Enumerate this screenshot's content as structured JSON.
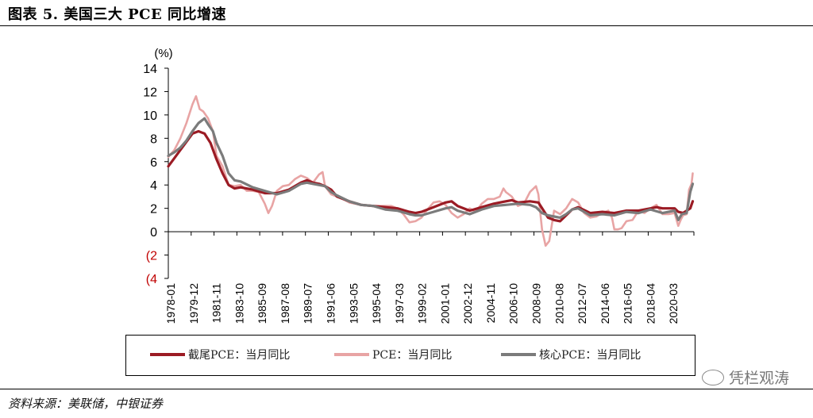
{
  "title": "图表 5. 美国三大 PCE 同比增速",
  "source": "资料来源：美联储，中银证券",
  "watermark": "凭栏观涛",
  "chart_data": {
    "type": "line",
    "unit_label": "(%)",
    "ylim": [
      -4,
      14
    ],
    "y_ticks": [
      14,
      12,
      10,
      8,
      6,
      4,
      2,
      0,
      -2,
      -4
    ],
    "y_tick_labels": [
      "14",
      "12",
      "10",
      "8",
      "6",
      "4",
      "2",
      "0",
      "(2",
      "(4"
    ],
    "x_tick_labels": [
      "1978-01",
      "1979-12",
      "1981-11",
      "1983-10",
      "1985-09",
      "1987-08",
      "1989-07",
      "1991-06",
      "1993-05",
      "1995-04",
      "1997-03",
      "1999-02",
      "2001-01",
      "2002-12",
      "2004-11",
      "2006-10",
      "2008-09",
      "2010-08",
      "2012-07",
      "2014-06",
      "2016-05",
      "2018-04",
      "2020-03"
    ],
    "xlim": [
      1978.0,
      2021.6
    ],
    "legend_placement": "bottom",
    "series": [
      {
        "name": "截尾PCE：当月同比",
        "color": "#9b1b24",
        "x": [
          1978.0,
          1978.5,
          1979.0,
          1979.5,
          1980.0,
          1980.5,
          1981.0,
          1981.5,
          1982.0,
          1982.5,
          1983.0,
          1983.5,
          1984.0,
          1985.0,
          1986.0,
          1987.0,
          1988.0,
          1989.0,
          1989.5,
          1990.0,
          1990.5,
          1991.0,
          1991.5,
          1992.0,
          1993.0,
          1994.0,
          1995.0,
          1996.0,
          1997.0,
          1998.0,
          1998.5,
          1999.0,
          2000.0,
          2001.0,
          2001.5,
          2002.0,
          2003.0,
          2004.0,
          2005.0,
          2006.0,
          2006.5,
          2007.0,
          2008.0,
          2008.7,
          2009.2,
          2009.5,
          2010.0,
          2010.5,
          2011.0,
          2011.5,
          2012.0,
          2013.0,
          2014.0,
          2015.0,
          2016.0,
          2017.0,
          2018.0,
          2018.5,
          2019.0,
          2019.5,
          2020.0,
          2020.3,
          2020.7,
          2021.0,
          2021.3,
          2021.5
        ],
        "y": [
          5.6,
          6.3,
          7.0,
          7.7,
          8.4,
          8.6,
          8.4,
          7.6,
          6.2,
          5.0,
          4.0,
          3.7,
          3.8,
          3.6,
          3.3,
          3.3,
          3.6,
          4.2,
          4.4,
          4.2,
          4.1,
          3.9,
          3.6,
          3.0,
          2.6,
          2.3,
          2.2,
          2.1,
          2.0,
          1.7,
          1.6,
          1.7,
          2.1,
          2.5,
          2.6,
          2.2,
          1.8,
          2.1,
          2.4,
          2.6,
          2.7,
          2.5,
          2.6,
          2.5,
          1.7,
          1.2,
          1.0,
          0.9,
          1.4,
          1.9,
          2.1,
          1.6,
          1.7,
          1.6,
          1.8,
          1.8,
          2.0,
          2.1,
          2.0,
          2.0,
          2.0,
          1.7,
          1.6,
          1.8,
          2.0,
          2.6
        ]
      },
      {
        "name": "PCE：当月同比",
        "color": "#e8a4a4",
        "x": [
          1978.0,
          1978.5,
          1979.0,
          1979.5,
          1980.0,
          1980.3,
          1980.6,
          1980.9,
          1981.3,
          1981.7,
          1982.0,
          1982.5,
          1983.0,
          1983.5,
          1984.0,
          1984.5,
          1985.0,
          1985.5,
          1986.0,
          1986.3,
          1986.6,
          1987.0,
          1987.5,
          1988.0,
          1988.5,
          1989.0,
          1989.5,
          1990.0,
          1990.5,
          1990.8,
          1991.0,
          1991.5,
          1992.0,
          1992.5,
          1993.0,
          1994.0,
          1995.0,
          1996.0,
          1996.5,
          1997.0,
          1997.5,
          1998.0,
          1998.5,
          1999.0,
          1999.5,
          2000.0,
          2000.5,
          2001.0,
          2001.5,
          2002.0,
          2002.5,
          2003.0,
          2003.5,
          2004.0,
          2004.5,
          2005.0,
          2005.5,
          2005.8,
          2006.0,
          2006.5,
          2007.0,
          2007.5,
          2008.0,
          2008.5,
          2008.7,
          2009.0,
          2009.3,
          2009.6,
          2010.0,
          2010.5,
          2011.0,
          2011.5,
          2012.0,
          2012.5,
          2013.0,
          2013.5,
          2014.0,
          2014.5,
          2014.8,
          2015.0,
          2015.3,
          2015.6,
          2016.0,
          2016.5,
          2017.0,
          2017.5,
          2018.0,
          2018.5,
          2019.0,
          2019.5,
          2020.0,
          2020.3,
          2020.5,
          2020.7,
          2021.0,
          2021.2,
          2021.4,
          2021.5
        ],
        "y": [
          6.4,
          7.0,
          8.0,
          9.3,
          10.9,
          11.6,
          10.5,
          10.3,
          9.7,
          8.6,
          6.5,
          5.6,
          4.0,
          3.9,
          4.0,
          3.5,
          3.5,
          3.4,
          2.4,
          1.6,
          2.2,
          3.5,
          3.9,
          4.0,
          4.5,
          4.8,
          4.6,
          4.2,
          4.9,
          5.1,
          3.9,
          3.2,
          3.0,
          2.8,
          2.5,
          2.3,
          2.2,
          2.2,
          2.2,
          2.0,
          1.5,
          0.8,
          0.9,
          1.2,
          1.9,
          2.5,
          2.6,
          2.3,
          1.6,
          1.2,
          1.5,
          2.0,
          1.7,
          2.4,
          2.8,
          2.8,
          3.0,
          3.7,
          3.4,
          3.0,
          2.2,
          2.4,
          3.4,
          3.9,
          3.2,
          0.2,
          -1.2,
          -0.8,
          1.8,
          1.5,
          2.0,
          2.8,
          2.5,
          1.6,
          1.2,
          1.3,
          1.6,
          1.8,
          1.2,
          0.2,
          0.2,
          0.3,
          0.9,
          1.0,
          1.8,
          1.6,
          2.0,
          2.3,
          1.5,
          1.5,
          1.6,
          0.5,
          1.0,
          1.4,
          1.5,
          3.6,
          4.1,
          5.0
        ]
      },
      {
        "name": "核心PCE：当月同比",
        "color": "#7b7b7b",
        "x": [
          1978.0,
          1978.5,
          1979.0,
          1979.5,
          1980.0,
          1980.5,
          1981.0,
          1981.3,
          1981.7,
          1982.0,
          1982.5,
          1983.0,
          1983.5,
          1984.0,
          1985.0,
          1986.0,
          1987.0,
          1988.0,
          1989.0,
          1989.5,
          1990.0,
          1991.0,
          1991.5,
          1992.0,
          1993.0,
          1994.0,
          1995.0,
          1996.0,
          1997.0,
          1998.0,
          1998.5,
          1999.0,
          2000.0,
          2001.0,
          2001.5,
          2002.0,
          2003.0,
          2004.0,
          2005.0,
          2006.0,
          2007.0,
          2008.0,
          2008.5,
          2009.0,
          2009.5,
          2010.0,
          2010.5,
          2011.0,
          2011.5,
          2012.0,
          2013.0,
          2014.0,
          2015.0,
          2016.0,
          2017.0,
          2018.0,
          2019.0,
          2019.5,
          2020.0,
          2020.3,
          2020.6,
          2021.0,
          2021.3,
          2021.5
        ],
        "y": [
          6.5,
          6.8,
          7.2,
          7.8,
          8.6,
          9.3,
          9.7,
          9.2,
          8.6,
          7.6,
          6.5,
          5.0,
          4.4,
          4.3,
          3.8,
          3.5,
          3.2,
          3.5,
          4.1,
          4.2,
          4.1,
          3.9,
          3.4,
          3.1,
          2.6,
          2.3,
          2.2,
          1.9,
          1.8,
          1.5,
          1.4,
          1.4,
          1.7,
          2.0,
          2.1,
          1.8,
          1.5,
          1.9,
          2.2,
          2.3,
          2.4,
          2.3,
          2.1,
          1.6,
          1.4,
          1.3,
          1.2,
          1.5,
          1.9,
          2.0,
          1.4,
          1.5,
          1.4,
          1.7,
          1.6,
          1.9,
          1.6,
          1.7,
          1.8,
          1.0,
          1.5,
          1.6,
          3.4,
          4.1
        ]
      }
    ]
  }
}
